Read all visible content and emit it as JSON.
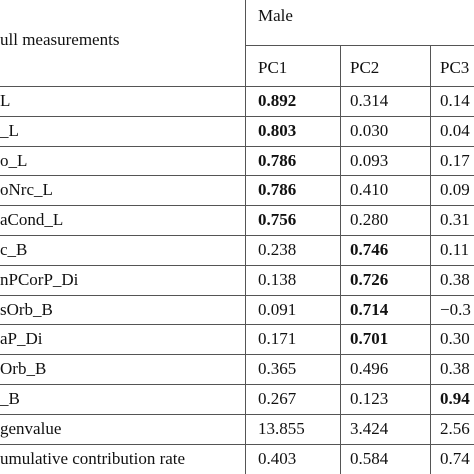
{
  "table": {
    "corner": "ull measurements",
    "group": "Male",
    "columns": [
      "PC1",
      "PC2",
      "PC3"
    ],
    "rows": [
      {
        "label": "L",
        "cells": [
          {
            "text": "0.892",
            "bold": true
          },
          {
            "text": "0.314",
            "bold": false
          },
          {
            "text": "0.14",
            "bold": false
          }
        ]
      },
      {
        "label": "_L",
        "cells": [
          {
            "text": "0.803",
            "bold": true
          },
          {
            "text": "0.030",
            "bold": false
          },
          {
            "text": "0.04",
            "bold": false
          }
        ]
      },
      {
        "label": "o_L",
        "cells": [
          {
            "text": "0.786",
            "bold": true
          },
          {
            "text": "0.093",
            "bold": false
          },
          {
            "text": "0.17",
            "bold": false
          }
        ]
      },
      {
        "label": "oNrc_L",
        "cells": [
          {
            "text": "0.786",
            "bold": true
          },
          {
            "text": "0.410",
            "bold": false
          },
          {
            "text": "0.09",
            "bold": false
          }
        ]
      },
      {
        "label": "aCond_L",
        "cells": [
          {
            "text": "0.756",
            "bold": true
          },
          {
            "text": "0.280",
            "bold": false
          },
          {
            "text": "0.31",
            "bold": false
          }
        ]
      },
      {
        "label": "c_B",
        "cells": [
          {
            "text": "0.238",
            "bold": false
          },
          {
            "text": "0.746",
            "bold": true
          },
          {
            "text": "0.11",
            "bold": false
          }
        ]
      },
      {
        "label": "nPCorP_Di",
        "cells": [
          {
            "text": "0.138",
            "bold": false
          },
          {
            "text": "0.726",
            "bold": true
          },
          {
            "text": "0.38",
            "bold": false
          }
        ]
      },
      {
        "label": "sOrb_B",
        "cells": [
          {
            "text": "0.091",
            "bold": false
          },
          {
            "text": "0.714",
            "bold": true
          },
          {
            "text": "−0.3",
            "bold": false
          }
        ]
      },
      {
        "label": "aP_Di",
        "cells": [
          {
            "text": "0.171",
            "bold": false
          },
          {
            "text": "0.701",
            "bold": true
          },
          {
            "text": "0.30",
            "bold": false
          }
        ]
      },
      {
        "label": "Orb_B",
        "cells": [
          {
            "text": "0.365",
            "bold": false
          },
          {
            "text": "0.496",
            "bold": false
          },
          {
            "text": "0.38",
            "bold": false
          }
        ]
      },
      {
        "label": "_B",
        "cells": [
          {
            "text": "0.267",
            "bold": false
          },
          {
            "text": "0.123",
            "bold": false
          },
          {
            "text": "0.94",
            "bold": true
          }
        ]
      },
      {
        "label": "genvalue",
        "cells": [
          {
            "text": "13.855",
            "bold": false
          },
          {
            "text": "3.424",
            "bold": false
          },
          {
            "text": "2.56",
            "bold": false
          }
        ]
      },
      {
        "label": "umulative contribution rate",
        "cells": [
          {
            "text": "0.403",
            "bold": false
          },
          {
            "text": "0.584",
            "bold": false
          },
          {
            "text": "0.74",
            "bold": false
          }
        ]
      }
    ]
  }
}
